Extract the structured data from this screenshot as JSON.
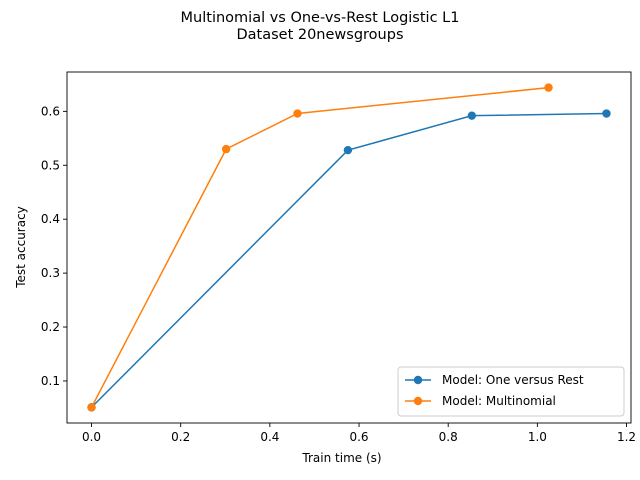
{
  "chart_data": {
    "type": "line",
    "title": "Multinomial vs One-vs-Rest Logistic L1",
    "subtitle": "Dataset 20newsgroups",
    "xlabel": "Train time (s)",
    "ylabel": "Test accuracy",
    "xlim": [
      -0.055,
      1.21
    ],
    "ylim": [
      0.022,
      0.673
    ],
    "xticks": [
      0.0,
      0.2,
      0.4,
      0.6,
      0.8,
      1.0,
      1.2
    ],
    "xtick_labels": [
      "0.0",
      "0.2",
      "0.4",
      "0.6",
      "0.8",
      "1.0",
      "1.2"
    ],
    "yticks": [
      0.1,
      0.2,
      0.3,
      0.4,
      0.5,
      0.6
    ],
    "ytick_labels": [
      "0.1",
      "0.2",
      "0.3",
      "0.4",
      "0.5",
      "0.6"
    ],
    "grid": false,
    "legend_position": "lower-right",
    "series": [
      {
        "name": "Model: One versus Rest",
        "color": "#1f77b4",
        "x": [
          0.0,
          0.575,
          0.853,
          1.155
        ],
        "y": [
          0.051,
          0.528,
          0.592,
          0.596
        ]
      },
      {
        "name": "Model: Multinomial",
        "color": "#ff7f0e",
        "x": [
          0.0,
          0.302,
          0.462,
          1.025
        ],
        "y": [
          0.051,
          0.53,
          0.596,
          0.644
        ]
      }
    ]
  }
}
